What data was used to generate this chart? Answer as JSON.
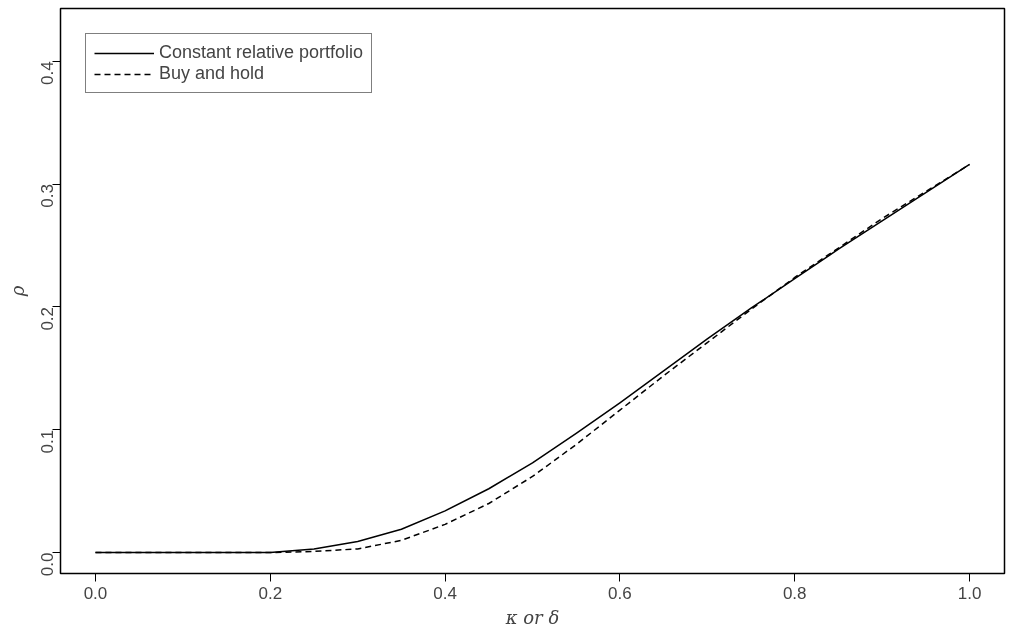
{
  "chart_data": {
    "type": "line",
    "xlabel": "κ or δ",
    "ylabel": "ρ",
    "x": [
      0.0,
      0.05,
      0.1,
      0.15,
      0.2,
      0.25,
      0.3,
      0.35,
      0.4,
      0.45,
      0.5,
      0.55,
      0.6,
      0.65,
      0.7,
      0.75,
      0.8,
      0.85,
      0.9,
      0.95,
      1.0
    ],
    "series": [
      {
        "name": "Constant relative portfolio",
        "color": "#000000",
        "line_style": "solid",
        "values": [
          0,
          0,
          0,
          0,
          0,
          0.003,
          0.009,
          0.019,
          0.034,
          0.052,
          0.073,
          0.097,
          0.122,
          0.148,
          0.174,
          0.199,
          0.223,
          0.247,
          0.27,
          0.293,
          0.316
        ]
      },
      {
        "name": "Buy and hold",
        "color": "#000000",
        "line_style": "dashed",
        "values": [
          0,
          0,
          0,
          0,
          0,
          0.001,
          0.003,
          0.01,
          0.023,
          0.04,
          0.062,
          0.088,
          0.116,
          0.144,
          0.171,
          0.198,
          0.224,
          0.248,
          0.272,
          0.294,
          0.316
        ]
      }
    ],
    "xlim": [
      -0.04,
      1.04
    ],
    "ylim": [
      -0.017,
      0.443
    ],
    "xticks": [
      {
        "value": 0.0,
        "label": "0.0"
      },
      0.2,
      0.4,
      0.6,
      0.8,
      {
        "value": 1.0,
        "label": "1.0"
      }
    ],
    "yticks": [
      {
        "value": 0.0,
        "label": "0.0"
      },
      0.1,
      0.2,
      0.3,
      0.4
    ],
    "grid": false,
    "legend": "top left"
  }
}
